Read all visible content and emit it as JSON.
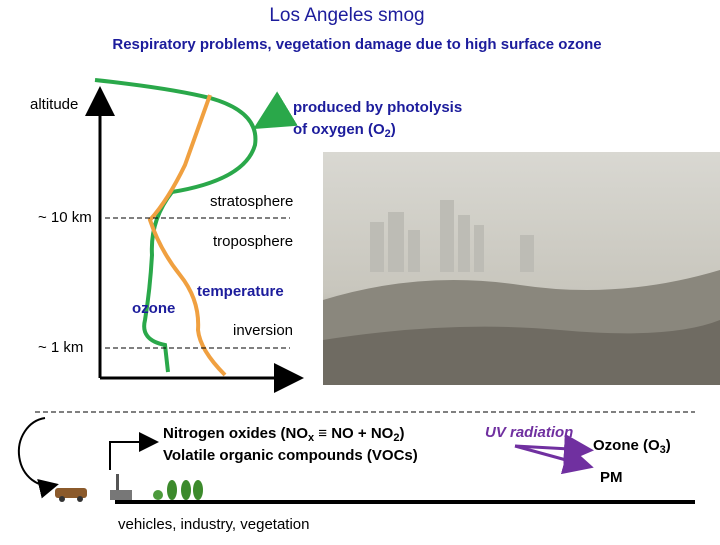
{
  "header": {
    "title": "Los Angeles smog",
    "subtitle": "Respiratory problems, vegetation damage due to high surface ozone"
  },
  "profile": {
    "axis_label": "altitude",
    "photolysis": {
      "line1": "produced by photolysis",
      "line2": "of oxygen (O",
      "sub": "2",
      "close": ")"
    },
    "stratosphere": "stratosphere",
    "tropopause": "~ 10 km",
    "troposphere": "troposphere",
    "ozone": "ozone",
    "temperature": "temperature",
    "inversion": "inversion",
    "inversion_height": "~ 1 km"
  },
  "chemistry": {
    "nox": {
      "text": "Nitrogen oxides (NO",
      "sub1": "x",
      "mid": " ≡ NO + NO",
      "sub2": "2",
      "close": ")"
    },
    "vocs": "Volatile organic compounds (VOCs)",
    "uv": "UV radiation",
    "ozone": {
      "text": "Ozone (O",
      "sub": "3",
      "close": ")"
    },
    "pm": "PM",
    "sources": "vehicles, industry, vegetation"
  }
}
